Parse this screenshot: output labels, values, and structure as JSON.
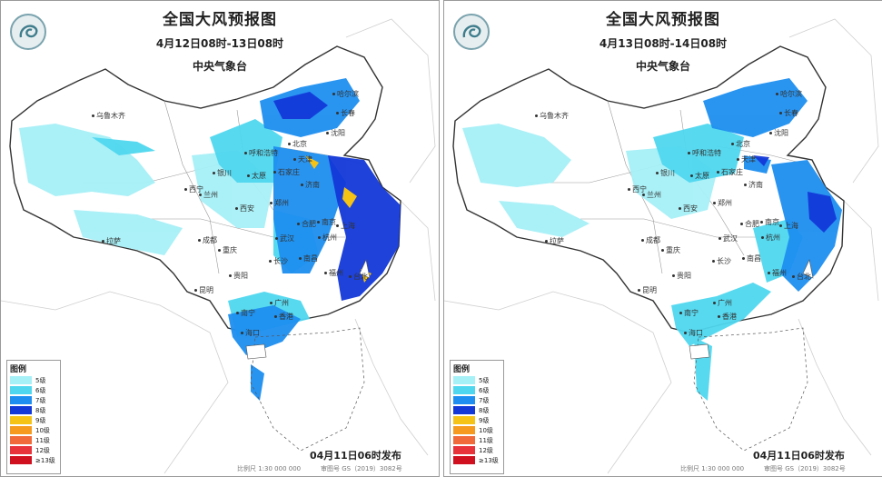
{
  "panels": [
    {
      "title": "全国大风预报图",
      "period": "4月12日08时-13日08时",
      "agency": "中央气象台",
      "issued": "04月11日06时发布",
      "scale": "比例尺 1:30 000 000",
      "review": "审图号 GS（2019）3082号"
    },
    {
      "title": "全国大风预报图",
      "period": "4月13日08时-14日08时",
      "agency": "中央气象台",
      "issued": "04月11日06时发布",
      "scale": "比例尺 1:30 000 000",
      "review": "审图号 GS（2019）3082号"
    }
  ],
  "legend": {
    "title": "图例",
    "items": [
      {
        "label": "5级",
        "color": "#a6f0f7"
      },
      {
        "label": "6级",
        "color": "#4fd7ef"
      },
      {
        "label": "7级",
        "color": "#1e8ff0"
      },
      {
        "label": "8级",
        "color": "#1238d8"
      },
      {
        "label": "9级",
        "color": "#f5c316"
      },
      {
        "label": "10级",
        "color": "#f59a1e"
      },
      {
        "label": "11级",
        "color": "#f06a3a"
      },
      {
        "label": "12级",
        "color": "#e8333a"
      },
      {
        "label": "≥13级",
        "color": "#d0101e"
      }
    ]
  },
  "cities": {
    "urumqi": "乌鲁木齐",
    "harbin": "哈尔滨",
    "changchun": "长春",
    "shenyang": "沈阳",
    "beijing": "北京",
    "hohhot": "呼和浩特",
    "tianjin": "天津",
    "yinchuan": "银川",
    "taiyuan": "太原",
    "shijiazhuang": "石家庄",
    "jinan": "济南",
    "xining": "西宁",
    "lanzhou": "兰州",
    "zhengzhou": "郑州",
    "xian": "西安",
    "hefei": "合肥",
    "nanjing": "南京",
    "shanghai": "上海",
    "lhasa": "拉萨",
    "chengdu": "成都",
    "wuhan": "武汉",
    "hangzhou": "杭州",
    "chongqing": "重庆",
    "nanchang": "南昌",
    "changsha": "长沙",
    "guiyang": "贵阳",
    "fuzhou": "福州",
    "taipei": "台北",
    "kunming": "昆明",
    "guangzhou": "广州",
    "nanning": "南宁",
    "hongkong": "香港",
    "haikou": "海口"
  }
}
